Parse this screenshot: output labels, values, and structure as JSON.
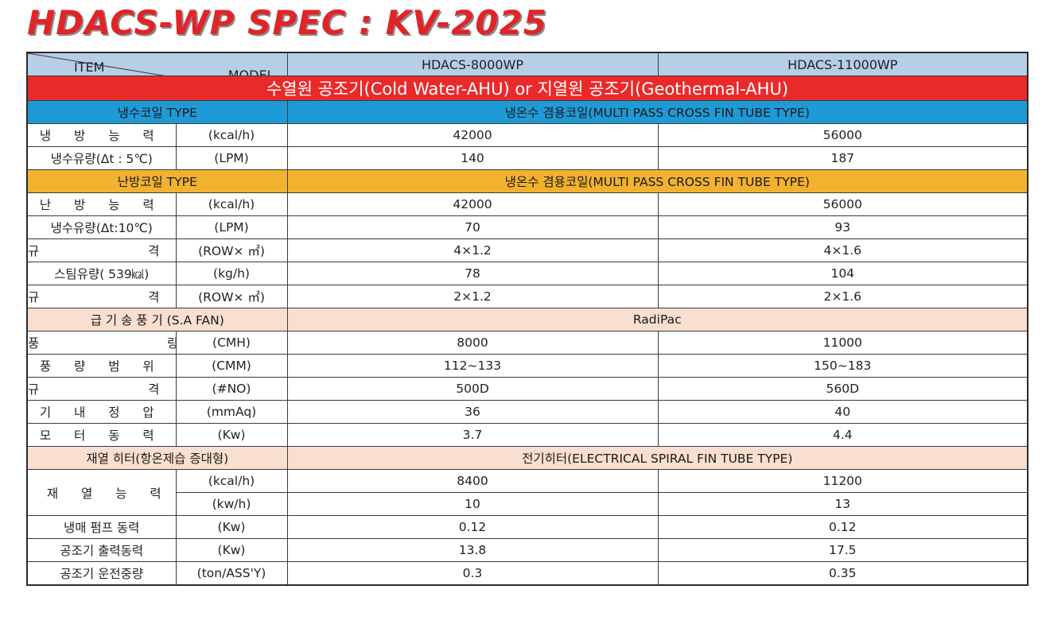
{
  "title": "HDACS-WP SPEC : KV-2025",
  "header": {
    "item": "ITEM",
    "model": "MODEL",
    "models": [
      "HDACS-8000WP",
      "HDACS-11000WP"
    ]
  },
  "banner": "수열원 공조기(Cold Water-AHU)  or  지열원 공조기(Geothermal-AHU)",
  "cooling_section": {
    "label": "냉수코일 TYPE",
    "value": "냉온수 겸용코일(MULTI PASS CROSS FIN TUBE TYPE)"
  },
  "cooling_rows": [
    {
      "name": "냉 방 능 력",
      "unit": "(kcal/h)",
      "v1": "42000",
      "v2": "56000"
    },
    {
      "name": "냉수유량(Δt : 5℃)",
      "unit": "(LPM)",
      "v1": "140",
      "v2": "187"
    }
  ],
  "heating_section": {
    "label": "난방코일 TYPE",
    "value": "냉온수 겸용코일(MULTI PASS CROSS FIN TUBE TYPE)"
  },
  "heating_rows": [
    {
      "name": "난 방 능 력",
      "unit": "(kcal/h)",
      "v1": "42000",
      "v2": "56000"
    },
    {
      "name": "냉수유량(Δt:10℃)",
      "unit": "(LPM)",
      "v1": "70",
      "v2": "93"
    },
    {
      "name": "규 격",
      "unit": "(ROW× ㎡)",
      "v1": "4×1.2",
      "v2": "4×1.6"
    },
    {
      "name": "스팀유량( 539㎉)",
      "unit": "(kg/h)",
      "v1": "78",
      "v2": "104"
    },
    {
      "name": "규 격",
      "unit": "(ROW× ㎡)",
      "v1": "2×1.2",
      "v2": "2×1.6"
    }
  ],
  "fan_section": {
    "label": "급 기 송 풍 기 (S.A FAN)",
    "value": "RadiPac"
  },
  "fan_rows": [
    {
      "name": "풍 량",
      "unit": "(CMH)",
      "v1": "8000",
      "v2": "11000"
    },
    {
      "name": "풍 량 범 위",
      "unit": "(CMM)",
      "v1": "112~133",
      "v2": "150~183"
    },
    {
      "name": "규 격",
      "unit": "(#NO)",
      "v1": "500D",
      "v2": "560D"
    },
    {
      "name": "기 내 정 압",
      "unit": "(mmAq)",
      "v1": "36",
      "v2": "40"
    },
    {
      "name": "모 터 동 력",
      "unit": "(Kw)",
      "v1": "3.7",
      "v2": "4.4"
    }
  ],
  "reheat_section": {
    "label": "재열 히터(항온제습 증대형)",
    "value": "전기히터(ELECTRICAL SPIRAL FIN TUBE TYPE)"
  },
  "reheat_capacity": {
    "name": "재 열 능 력",
    "rows": [
      {
        "unit": "(kcal/h)",
        "v1": "8400",
        "v2": "11200"
      },
      {
        "unit": "(kw/h)",
        "v1": "10",
        "v2": "13"
      }
    ]
  },
  "bottom_rows": [
    {
      "name": "냉매 펌프 동력",
      "unit": "(Kw)",
      "v1": "0.12",
      "v2": "0.12"
    },
    {
      "name": "공조기 출력동력",
      "unit": "(Kw)",
      "v1": "13.8",
      "v2": "17.5"
    },
    {
      "name": "공조기 운전중량",
      "unit": "(ton/ASS'Y)",
      "v1": "0.3",
      "v2": "0.35"
    }
  ]
}
